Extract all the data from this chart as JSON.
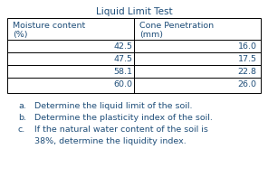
{
  "title": "Liquid Limit Test",
  "col1_header_line1": "Moisture content",
  "col1_header_line2": "(%)",
  "col2_header_line1": "Cone Penetration",
  "col2_header_line2": "(mm)",
  "col1_data": [
    "42.5",
    "47.5",
    "58.1",
    "60.0"
  ],
  "col2_data": [
    "16.0",
    "17.5",
    "22.8",
    "26.0"
  ],
  "questions": [
    [
      "a.",
      "Determine the liquid limit of the soil."
    ],
    [
      "b.",
      "Determine the plasticity index of the soil."
    ],
    [
      "c.",
      "If the natural water content of the soil is"
    ],
    [
      "",
      "38%, determine the liquidity index."
    ]
  ],
  "text_color": "#1f4e79",
  "bg_color": "#ffffff",
  "title_fontsize": 7.5,
  "header_fontsize": 6.8,
  "data_fontsize": 6.8,
  "question_fontsize": 6.8
}
